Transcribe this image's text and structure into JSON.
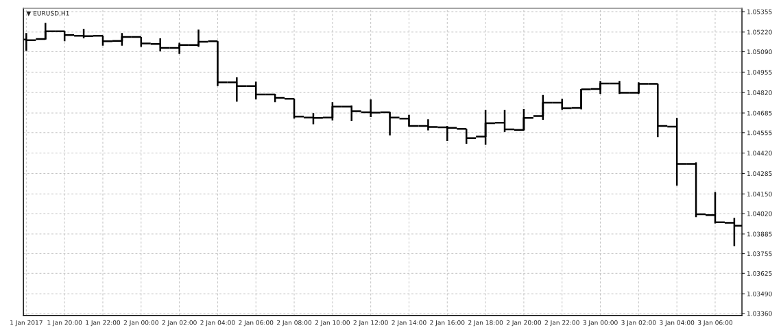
{
  "chart_data": {
    "type": "candlestick",
    "title": "▼ EURUSD,H1",
    "color": "#000000",
    "categories": [
      "1 Jan 2017",
      null,
      "1 Jan 20:00",
      null,
      "1 Jan 22:00",
      null,
      "2 Jan 00:00",
      null,
      "2 Jan 02:00",
      null,
      "2 Jan 04:00",
      null,
      "2 Jan 06:00",
      null,
      "2 Jan 08:00",
      null,
      "2 Jan 10:00",
      null,
      "2 Jan 12:00",
      null,
      "2 Jan 14:00",
      null,
      "2 Jan 16:00",
      null,
      "2 Jan 18:00",
      null,
      "2 Jan 20:00",
      null,
      "2 Jan 22:00",
      null,
      "3 Jan 00:00",
      null,
      "3 Jan 02:00",
      null,
      "3 Jan 04:00",
      null,
      "3 Jan 06:00",
      null
    ],
    "ohlc": [
      [
        1.0517,
        1.05214,
        1.05096,
        1.05166
      ],
      [
        1.05174,
        1.0528,
        1.0517,
        1.05225
      ],
      [
        1.05225,
        1.05228,
        1.05159,
        1.052
      ],
      [
        1.05196,
        1.05241,
        1.05178,
        1.05193
      ],
      [
        1.05196,
        1.05197,
        1.0513,
        1.05159
      ],
      [
        1.05162,
        1.05214,
        1.0513,
        1.05188
      ],
      [
        1.05188,
        1.05188,
        1.05122,
        1.05145
      ],
      [
        1.05141,
        1.05178,
        1.05093,
        1.05115
      ],
      [
        1.05115,
        1.05149,
        1.05075,
        1.05134
      ],
      [
        1.05134,
        1.05236,
        1.05122,
        1.05156
      ],
      [
        1.05159,
        1.05159,
        1.04863,
        1.04888
      ],
      [
        1.04888,
        1.04921,
        1.0476,
        1.04863
      ],
      [
        1.04863,
        1.04892,
        1.04775,
        1.04807
      ],
      [
        1.04807,
        1.04812,
        1.04757,
        1.04785
      ],
      [
        1.04779,
        1.04779,
        1.04648,
        1.04662
      ],
      [
        1.04655,
        1.04684,
        1.04611,
        1.04652
      ],
      [
        1.04655,
        1.04757,
        1.04636,
        1.04727
      ],
      [
        1.04727,
        1.04734,
        1.04631,
        1.04697
      ],
      [
        1.0469,
        1.04775,
        1.04658,
        1.04687
      ],
      [
        1.0469,
        1.04692,
        1.04537,
        1.04655
      ],
      [
        1.04648,
        1.04673,
        1.04595,
        1.04599
      ],
      [
        1.04599,
        1.04643,
        1.0457,
        1.04592
      ],
      [
        1.0459,
        1.04599,
        1.045,
        1.04587
      ],
      [
        1.0458,
        1.0458,
        1.04482,
        1.04519
      ],
      [
        1.04529,
        1.04705,
        1.04475,
        1.04617
      ],
      [
        1.04621,
        1.04705,
        1.04558,
        1.04577
      ],
      [
        1.04573,
        1.04712,
        1.0457,
        1.04653
      ],
      [
        1.04665,
        1.04804,
        1.0464,
        1.04753
      ],
      [
        1.04753,
        1.04778,
        1.04706,
        1.04717
      ],
      [
        1.04719,
        1.04841,
        1.04709,
        1.04841
      ],
      [
        1.04844,
        1.04897,
        1.04811,
        1.0488
      ],
      [
        1.0488,
        1.04897,
        1.04811,
        1.04819
      ],
      [
        1.04819,
        1.04888,
        1.04811,
        1.04877
      ],
      [
        1.04877,
        1.04877,
        1.04526,
        1.04599
      ],
      [
        1.04595,
        1.04653,
        1.04204,
        1.04348
      ],
      [
        1.04348,
        1.04358,
        1.03996,
        1.04016
      ],
      [
        1.0401,
        1.04163,
        1.03955,
        1.03962
      ],
      [
        1.03959,
        1.03992,
        1.03805,
        1.0394
      ]
    ],
    "ylim": [
      1.03347,
      1.05377
    ],
    "yticks": [
      1.05355,
      {
        "value": 1.0522,
        "label": "1.05220"
      },
      {
        "value": 1.0509,
        "label": "1.05090"
      },
      1.04955,
      {
        "value": 1.0482,
        "label": "1.04820"
      },
      1.04685,
      1.04555,
      {
        "value": 1.0442,
        "label": "1.04420"
      },
      1.04285,
      {
        "value": 1.0415,
        "label": "1.04150"
      },
      {
        "value": 1.0402,
        "label": "1.04020"
      },
      1.03885,
      1.03755,
      1.03625,
      {
        "value": 1.0349,
        "label": "1.03490"
      },
      {
        "value": 1.0336,
        "label": "1.03360"
      }
    ],
    "grid": true
  }
}
